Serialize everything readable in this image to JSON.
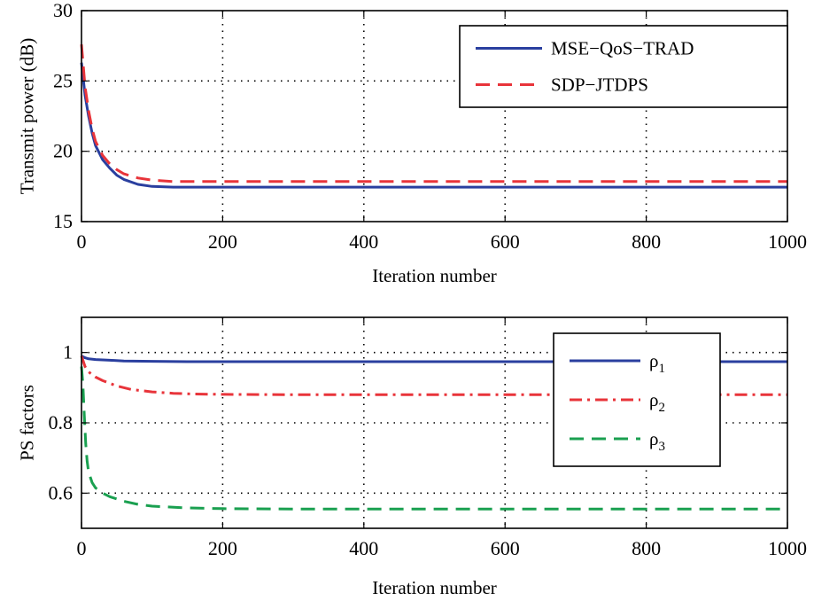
{
  "chart_data": [
    {
      "type": "line",
      "xlabel": "Iteration number",
      "ylabel": "Transmit power (dB)",
      "xlim": [
        0,
        1000
      ],
      "ylim": [
        15,
        30
      ],
      "xticks": [
        0,
        200,
        400,
        600,
        800,
        1000
      ],
      "yticks": [
        15,
        20,
        25,
        30
      ],
      "grid": true,
      "legend_position": "top-right",
      "series": [
        {
          "name": "MSE−QoS−TRAD",
          "color": "#2a3f9f",
          "dash": "solid",
          "x": [
            0,
            5,
            10,
            15,
            20,
            30,
            40,
            50,
            60,
            80,
            100,
            130,
            160,
            200,
            300,
            400,
            600,
            800,
            1000
          ],
          "y": [
            26.3,
            24.0,
            22.5,
            21.3,
            20.4,
            19.4,
            18.8,
            18.3,
            18.0,
            17.65,
            17.5,
            17.45,
            17.45,
            17.45,
            17.45,
            17.45,
            17.45,
            17.45,
            17.45
          ]
        },
        {
          "name": "SDP−JTDPS",
          "color": "#e8343a",
          "dash": "dashed",
          "x": [
            0,
            5,
            10,
            15,
            20,
            30,
            40,
            50,
            60,
            80,
            100,
            130,
            160,
            200,
            300,
            400,
            600,
            800,
            1000
          ],
          "y": [
            27.6,
            24.6,
            22.9,
            21.6,
            20.7,
            19.7,
            19.1,
            18.7,
            18.4,
            18.1,
            17.95,
            17.85,
            17.85,
            17.85,
            17.85,
            17.85,
            17.85,
            17.85,
            17.85
          ]
        }
      ]
    },
    {
      "type": "line",
      "xlabel": "Iteration number",
      "ylabel": "PS factors",
      "xlim": [
        0,
        1000
      ],
      "ylim": [
        0.5,
        1.1
      ],
      "xticks": [
        0,
        200,
        400,
        600,
        800,
        1000
      ],
      "yticks": [
        0.6,
        0.8,
        1
      ],
      "ytick_labels": [
        "0.6",
        "0.8",
        "1"
      ],
      "grid": true,
      "legend_position": "top-right",
      "series": [
        {
          "name": "ρ",
          "subscript": "1",
          "color": "#2a3f9f",
          "dash": "solid",
          "x": [
            0,
            5,
            10,
            20,
            40,
            60,
            100,
            150,
            200,
            400,
            600,
            800,
            1000
          ],
          "y": [
            0.99,
            0.985,
            0.982,
            0.98,
            0.978,
            0.976,
            0.975,
            0.974,
            0.974,
            0.974,
            0.974,
            0.974,
            0.974
          ]
        },
        {
          "name": "ρ",
          "subscript": "2",
          "color": "#e8343a",
          "dash": "dashdot",
          "x": [
            0,
            5,
            10,
            20,
            30,
            50,
            70,
            100,
            130,
            160,
            200,
            300,
            400,
            600,
            800,
            1000
          ],
          "y": [
            0.99,
            0.96,
            0.945,
            0.93,
            0.92,
            0.905,
            0.895,
            0.888,
            0.884,
            0.882,
            0.881,
            0.88,
            0.88,
            0.88,
            0.88,
            0.88
          ],
          "_unused": null
        },
        {
          "name": "ρ",
          "subscript": "3",
          "color": "#1aa050",
          "dash": "dashed",
          "x": [
            0,
            2,
            4,
            6,
            8,
            10,
            15,
            20,
            30,
            40,
            60,
            80,
            100,
            150,
            200,
            300,
            400,
            600,
            800,
            1000
          ],
          "y": [
            0.96,
            0.91,
            0.82,
            0.74,
            0.69,
            0.66,
            0.63,
            0.615,
            0.6,
            0.59,
            0.577,
            0.568,
            0.563,
            0.558,
            0.556,
            0.555,
            0.555,
            0.555,
            0.555,
            0.555
          ]
        }
      ]
    }
  ]
}
